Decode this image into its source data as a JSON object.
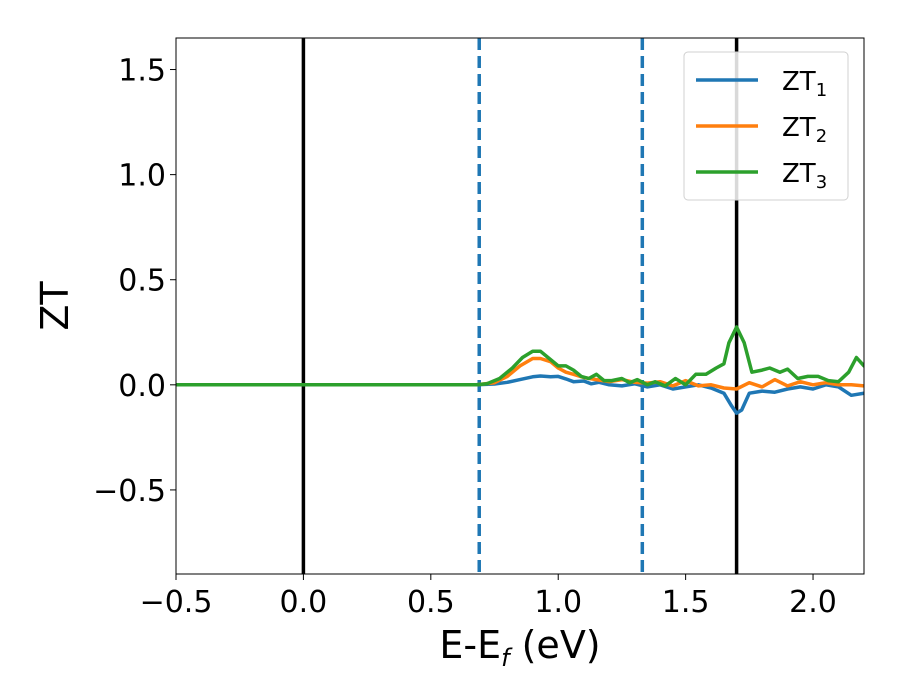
{
  "chart_data": {
    "type": "line",
    "title": "",
    "xlabel_main": "E-E",
    "xlabel_sub": "f",
    "xlabel_unit": " (eV)",
    "ylabel": "ZT",
    "xlim": [
      -0.5,
      2.2
    ],
    "ylim": [
      -0.9,
      1.65
    ],
    "xticks": [
      -0.5,
      0.0,
      0.5,
      1.0,
      1.5,
      2.0
    ],
    "xtick_labels": [
      "−0.5",
      "0.0",
      "0.5",
      "1.0",
      "1.5",
      "2.0"
    ],
    "yticks": [
      -0.5,
      0.0,
      0.5,
      1.0,
      1.5
    ],
    "ytick_labels": [
      "−0.5",
      "0.0",
      "0.5",
      "1.0",
      "1.5"
    ],
    "grid": false,
    "legend_position": "top-right",
    "vlines": [
      {
        "x": 0.0,
        "style": "solid",
        "color": "#000000"
      },
      {
        "x": 0.69,
        "style": "dashed",
        "color": "#1f77b4"
      },
      {
        "x": 1.33,
        "style": "dashed",
        "color": "#1f77b4"
      },
      {
        "x": 1.7,
        "style": "solid",
        "color": "#000000"
      }
    ],
    "series": [
      {
        "name": "ZT",
        "sub": "1",
        "color": "#1f77b4",
        "points": [
          [
            -0.5,
            0
          ],
          [
            0.68,
            0
          ],
          [
            0.75,
            0.004
          ],
          [
            0.8,
            0.012
          ],
          [
            0.85,
            0.025
          ],
          [
            0.9,
            0.038
          ],
          [
            0.93,
            0.042
          ],
          [
            0.97,
            0.038
          ],
          [
            1.0,
            0.04
          ],
          [
            1.03,
            0.028
          ],
          [
            1.06,
            0.015
          ],
          [
            1.1,
            0.018
          ],
          [
            1.13,
            0.005
          ],
          [
            1.16,
            0.012
          ],
          [
            1.2,
            0.0
          ],
          [
            1.25,
            -0.005
          ],
          [
            1.3,
            0.005
          ],
          [
            1.35,
            -0.01
          ],
          [
            1.4,
            0.0
          ],
          [
            1.45,
            -0.02
          ],
          [
            1.5,
            -0.01
          ],
          [
            1.55,
            0.0
          ],
          [
            1.6,
            -0.015
          ],
          [
            1.65,
            -0.04
          ],
          [
            1.68,
            -0.1
          ],
          [
            1.7,
            -0.135
          ],
          [
            1.72,
            -0.12
          ],
          [
            1.75,
            -0.04
          ],
          [
            1.8,
            -0.03
          ],
          [
            1.85,
            -0.035
          ],
          [
            1.9,
            -0.02
          ],
          [
            1.95,
            -0.01
          ],
          [
            2.0,
            -0.02
          ],
          [
            2.05,
            0.0
          ],
          [
            2.1,
            -0.01
          ],
          [
            2.15,
            -0.05
          ],
          [
            2.2,
            -0.04
          ]
        ]
      },
      {
        "name": "ZT",
        "sub": "2",
        "color": "#ff7f0e",
        "points": [
          [
            -0.5,
            0
          ],
          [
            0.68,
            0
          ],
          [
            0.75,
            0.01
          ],
          [
            0.8,
            0.04
          ],
          [
            0.85,
            0.09
          ],
          [
            0.9,
            0.125
          ],
          [
            0.93,
            0.125
          ],
          [
            0.97,
            0.11
          ],
          [
            1.0,
            0.08
          ],
          [
            1.03,
            0.06
          ],
          [
            1.06,
            0.05
          ],
          [
            1.1,
            0.035
          ],
          [
            1.15,
            0.025
          ],
          [
            1.2,
            0.015
          ],
          [
            1.25,
            0.025
          ],
          [
            1.3,
            0.012
          ],
          [
            1.35,
            0.008
          ],
          [
            1.4,
            0.015
          ],
          [
            1.45,
            -0.005
          ],
          [
            1.5,
            0.02
          ],
          [
            1.55,
            -0.005
          ],
          [
            1.6,
            0.0
          ],
          [
            1.65,
            -0.015
          ],
          [
            1.7,
            -0.02
          ],
          [
            1.75,
            0.01
          ],
          [
            1.8,
            -0.01
          ],
          [
            1.85,
            0.025
          ],
          [
            1.9,
            -0.005
          ],
          [
            1.95,
            0.015
          ],
          [
            2.0,
            0.0
          ],
          [
            2.05,
            0.01
          ],
          [
            2.1,
            0.0
          ],
          [
            2.15,
            0.0
          ],
          [
            2.2,
            -0.005
          ]
        ]
      },
      {
        "name": "ZT",
        "sub": "3",
        "color": "#2ca02c",
        "points": [
          [
            -0.5,
            0
          ],
          [
            0.68,
            0
          ],
          [
            0.72,
            0.005
          ],
          [
            0.77,
            0.03
          ],
          [
            0.82,
            0.08
          ],
          [
            0.86,
            0.13
          ],
          [
            0.9,
            0.16
          ],
          [
            0.93,
            0.16
          ],
          [
            0.96,
            0.13
          ],
          [
            1.0,
            0.09
          ],
          [
            1.03,
            0.09
          ],
          [
            1.06,
            0.07
          ],
          [
            1.09,
            0.04
          ],
          [
            1.12,
            0.03
          ],
          [
            1.15,
            0.05
          ],
          [
            1.18,
            0.02
          ],
          [
            1.21,
            0.02
          ],
          [
            1.25,
            0.03
          ],
          [
            1.28,
            0.01
          ],
          [
            1.31,
            0.025
          ],
          [
            1.35,
            0.0
          ],
          [
            1.38,
            0.015
          ],
          [
            1.42,
            -0.005
          ],
          [
            1.46,
            0.03
          ],
          [
            1.5,
            0.0
          ],
          [
            1.54,
            0.05
          ],
          [
            1.58,
            0.05
          ],
          [
            1.62,
            0.08
          ],
          [
            1.65,
            0.1
          ],
          [
            1.67,
            0.2
          ],
          [
            1.7,
            0.275
          ],
          [
            1.73,
            0.2
          ],
          [
            1.76,
            0.06
          ],
          [
            1.8,
            0.07
          ],
          [
            1.83,
            0.08
          ],
          [
            1.87,
            0.06
          ],
          [
            1.9,
            0.075
          ],
          [
            1.94,
            0.03
          ],
          [
            1.98,
            0.04
          ],
          [
            2.02,
            0.04
          ],
          [
            2.06,
            0.02
          ],
          [
            2.1,
            0.015
          ],
          [
            2.14,
            0.06
          ],
          [
            2.17,
            0.13
          ],
          [
            2.2,
            0.09
          ]
        ]
      }
    ]
  }
}
